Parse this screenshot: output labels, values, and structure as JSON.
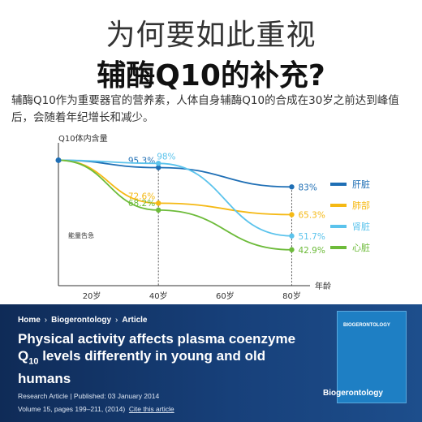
{
  "header": {
    "line1": "为何要如此重视",
    "line2": "辅酶Q10的补充?",
    "description": "辅酶Q10作为重要器官的营养素，人体自身辅酶Q10的合成在30岁之前达到峰值后，会随着年纪增长和减少。"
  },
  "chart_data": {
    "type": "line",
    "ylabel": "Q10体内含量",
    "xlabel": "年龄",
    "x": [
      20,
      40,
      60,
      80
    ],
    "x_tick_labels": [
      "20岁",
      "40岁",
      "60岁",
      "80岁"
    ],
    "xlim": [
      10,
      85
    ],
    "ylim": [
      20,
      108
    ],
    "annotation": "能量告急",
    "start_x": 10,
    "start_y": 100,
    "series": [
      {
        "name": "肝脏",
        "color": "#1f6fb5",
        "labeled_points": [
          {
            "x": 40,
            "y": 95.3,
            "label": "95.3%"
          },
          {
            "x": 80,
            "y": 83,
            "label": "83%"
          }
        ]
      },
      {
        "name": "肺部",
        "color": "#f5b914",
        "labeled_points": [
          {
            "x": 40,
            "y": 72.6,
            "label": "72.6%"
          },
          {
            "x": 80,
            "y": 65.3,
            "label": "65.3%"
          }
        ]
      },
      {
        "name": "肾脏",
        "color": "#5bc3ec",
        "labeled_points": [
          {
            "x": 40,
            "y": 98,
            "label": "98%"
          },
          {
            "x": 80,
            "y": 51.7,
            "label": "51.7%"
          }
        ]
      },
      {
        "name": "心脏",
        "color": "#6dbb3a",
        "labeled_points": [
          {
            "x": 40,
            "y": 68.2,
            "label": "68.2%"
          },
          {
            "x": 80,
            "y": 42.9,
            "label": "42.9%"
          }
        ]
      }
    ]
  },
  "article": {
    "breadcrumb": [
      "Home",
      "Biogerontology",
      "Article"
    ],
    "title": "Physical activity affects plasma coenzyme Q10 levels differently in young and old humans",
    "type": "Research Article",
    "published": "Published: 03 January 2014",
    "volume": "Volume 15, pages 199–211, (2014)",
    "cite": "Cite this article",
    "journal_cover_title": "BIOGERONTOLOGY",
    "journal_name": "Biogerontology"
  }
}
